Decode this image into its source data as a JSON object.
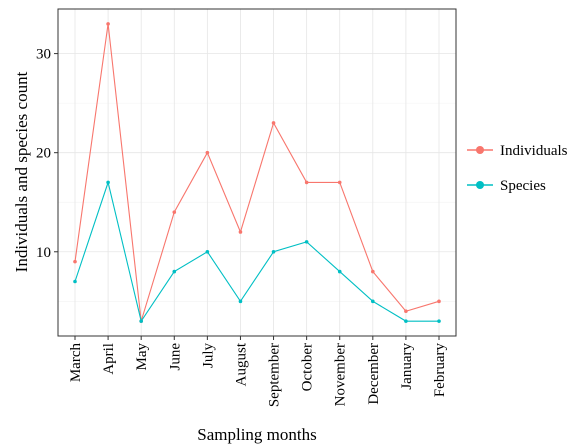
{
  "chart_data": {
    "type": "line",
    "categories": [
      "March",
      "April",
      "May",
      "June",
      "July",
      "August",
      "September",
      "October",
      "November",
      "December",
      "January",
      "February"
    ],
    "series": [
      {
        "name": "Individuals",
        "color": "#F8766D",
        "values": [
          9,
          33,
          3,
          14,
          20,
          12,
          23,
          17,
          17,
          8,
          4,
          5
        ]
      },
      {
        "name": "Species",
        "color": "#00BFC4",
        "values": [
          7,
          17,
          3,
          8,
          10,
          5,
          10,
          11,
          8,
          5,
          3,
          3
        ]
      }
    ],
    "xlabel": "Sampling months",
    "ylabel": "Individuals and species count",
    "ylim": [
      1.5,
      34.5
    ],
    "yticks": [
      10,
      20,
      30
    ],
    "grid": true,
    "legend_position": "right"
  }
}
